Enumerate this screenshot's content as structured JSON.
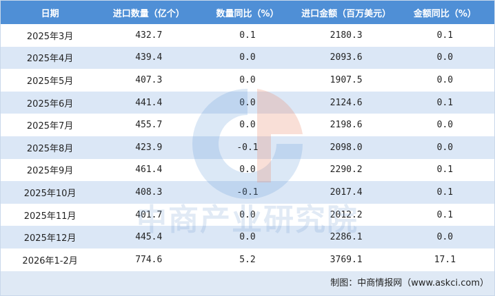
{
  "table": {
    "header": [
      "日期",
      "进口数量（亿个）",
      "数量同比（%）",
      "进口金额（百万美元）",
      "金额同比（%）"
    ],
    "rows": [
      [
        "2025年3月",
        "432.7",
        "0.1",
        "2180.3",
        "0.1"
      ],
      [
        "2025年4月",
        "439.4",
        "0.0",
        "2093.6",
        "0.0"
      ],
      [
        "2025年5月",
        "407.3",
        "0.0",
        "1907.5",
        "0.0"
      ],
      [
        "2025年6月",
        "441.4",
        "0.0",
        "2124.6",
        "0.1"
      ],
      [
        "2025年7月",
        "455.7",
        "0.0",
        "2198.6",
        "0.0"
      ],
      [
        "2025年8月",
        "423.9",
        "-0.1",
        "2098.0",
        "0.0"
      ],
      [
        "2025年9月",
        "461.4",
        "0.0",
        "2290.2",
        "0.1"
      ],
      [
        "2025年10月",
        "408.3",
        "-0.1",
        "2017.4",
        "0.1"
      ],
      [
        "2025年11月",
        "401.7",
        "0.0",
        "2012.2",
        "0.1"
      ],
      [
        "2025年12月",
        "445.4",
        "0.0",
        "2286.1",
        "0.0"
      ],
      [
        "2026年1-2月",
        "774.6",
        "5.2",
        "3769.1",
        "17.1"
      ]
    ]
  },
  "footer": "制图：中商情报网（www.askci.com）",
  "watermark": "中商产业研究院"
}
